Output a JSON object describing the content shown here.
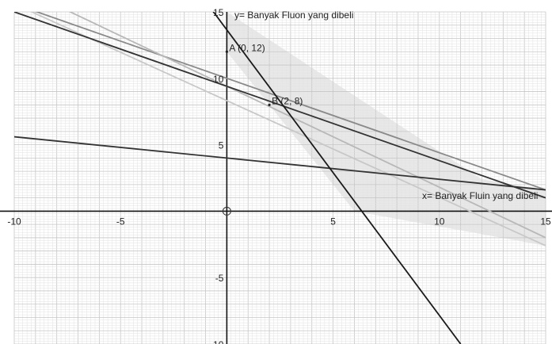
{
  "chart_data": {
    "type": "line",
    "xlim": [
      -10,
      15
    ],
    "ylim": [
      -10,
      15
    ],
    "grid": true,
    "x_ticks": [
      "-10",
      "-5",
      "5",
      "10",
      "15"
    ],
    "y_ticks": [
      "15",
      "10",
      "5",
      "-5",
      "-10"
    ],
    "origin_label": "0",
    "xlabel": "x= Banyak Fluin  yang dibeli",
    "ylabel": "y= Banyak Fluon yang dibeli",
    "series": [
      {
        "x": [
          -10,
          15
        ],
        "y": [
          15.6,
          1.6
        ],
        "color": "#8a8a8a"
      },
      {
        "x": [
          -10,
          15
        ],
        "y": [
          17.0,
          -2.0
        ],
        "color": "#b8b8b8"
      },
      {
        "x": [
          -10,
          15
        ],
        "y": [
          15.6,
          -2.6
        ],
        "color": "#c8c8c8"
      },
      {
        "x": [
          -10,
          15
        ],
        "y": [
          15.0,
          1.0
        ],
        "color": "#333333"
      },
      {
        "x": [
          -10,
          15
        ],
        "y": [
          5.6,
          1.6
        ],
        "color": "#333333"
      },
      {
        "x": [
          -1,
          11
        ],
        "y": [
          15.8,
          -10.0
        ],
        "color": "#1a1a1a"
      }
    ],
    "points": [
      {
        "label": "A (0, 12)",
        "x": 0,
        "y": 12
      },
      {
        "label": "B (2, 8)",
        "x": 2,
        "y": 8
      }
    ]
  }
}
